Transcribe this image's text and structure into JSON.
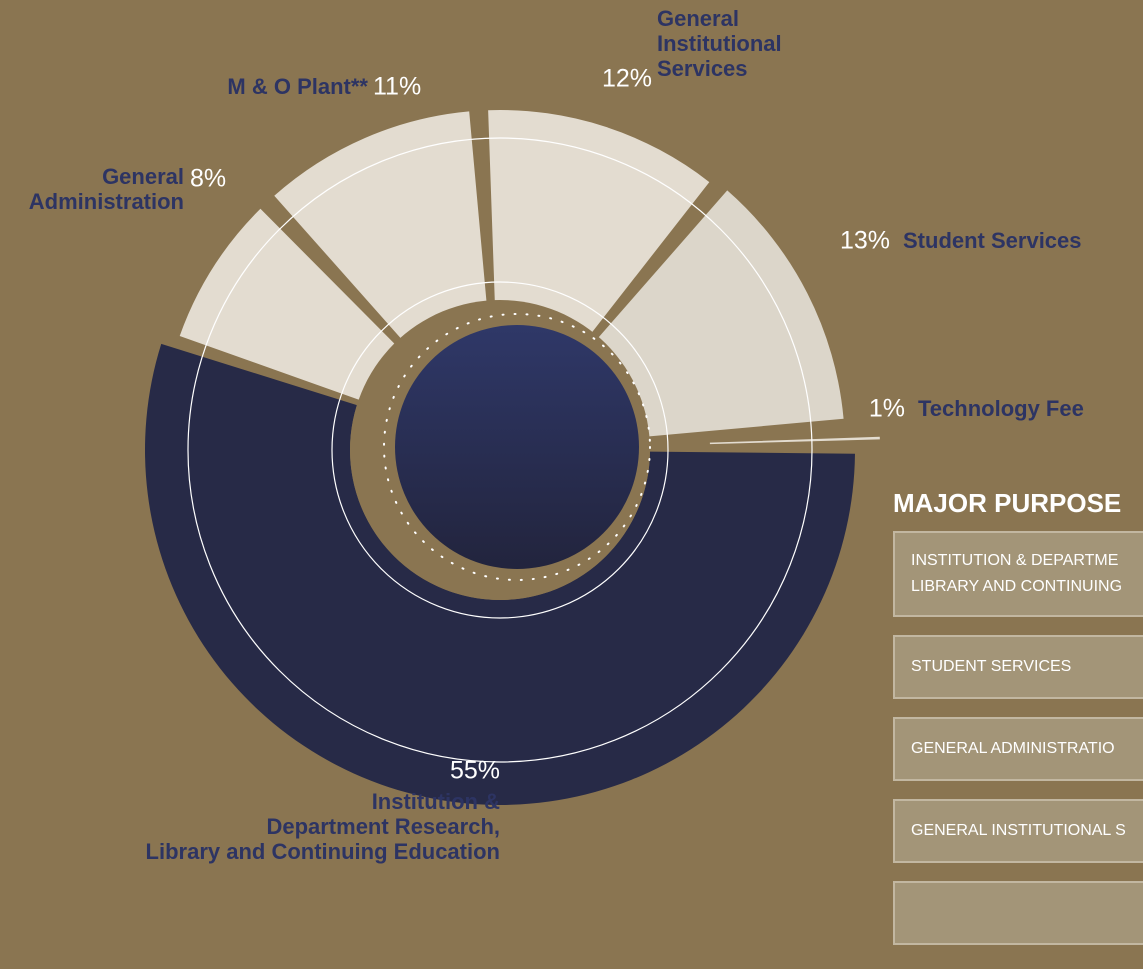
{
  "chart_data": {
    "type": "pie",
    "categories": [
      [
        "Institution &",
        "Department Research,",
        "Library and Continuing Education"
      ],
      [
        "General",
        "Administration"
      ],
      [
        "M & O Plant**"
      ],
      [
        "General",
        "Institutional",
        "Services"
      ],
      [
        "Student Services"
      ],
      [
        "Technology Fee"
      ]
    ],
    "values": [
      55,
      8,
      11,
      12,
      13,
      1
    ],
    "value_labels": [
      "55%",
      "8%",
      "11%",
      "12%",
      "13%",
      "1%"
    ],
    "colors": [
      "#272a47",
      "#e3dcd0",
      "#e3dcd0",
      "#e3dcd0",
      "#dcd6ca",
      "#e3dcd0"
    ]
  },
  "table": {
    "title": "MAJOR PURPOSE",
    "rows": [
      [
        "INSTITUTION & DEPARTME",
        "LIBRARY AND CONTINUING"
      ],
      [
        "STUDENT SERVICES"
      ],
      [
        "GENERAL ADMINISTRATIO"
      ],
      [
        "GENERAL INSTITUTIONAL S"
      ]
    ]
  }
}
